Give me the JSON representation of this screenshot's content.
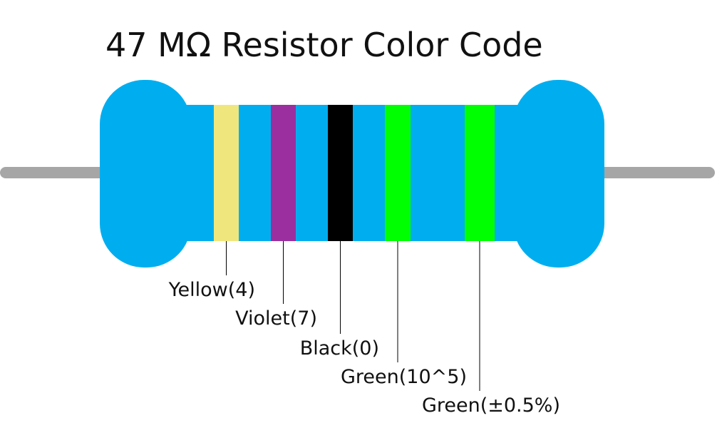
{
  "title": "47 MΩ Resistor Color Code",
  "bands": [
    {
      "label": "Yellow(4)",
      "color": "#f0e67e"
    },
    {
      "label": "Violet(7)",
      "color": "#9b2fa0"
    },
    {
      "label": "Black(0)",
      "color": "#000000"
    },
    {
      "label": "Green(10^5)",
      "color": "#00ff00"
    },
    {
      "label": "Green(±0.5%)",
      "color": "#00ff00"
    }
  ]
}
